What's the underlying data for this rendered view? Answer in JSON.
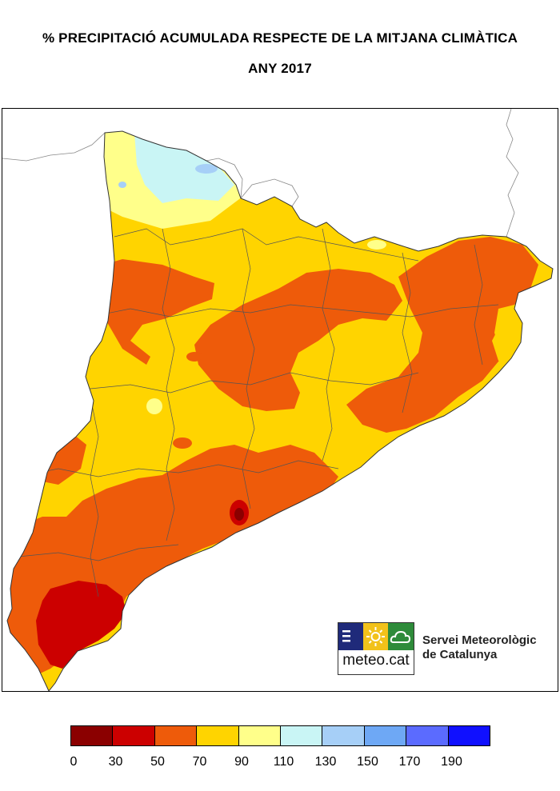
{
  "header": {
    "title": "% PRECIPITACIÓ ACUMULADA RESPECTE DE LA MITJANA CLIMÀTICA",
    "subtitle": "ANY 2017"
  },
  "brand": {
    "logo_text": "meteo.cat",
    "org_line1": "Servei Meteorològic",
    "org_line2": "de Catalunya",
    "logo_colors": [
      "#1f2a7a",
      "#f2c21a",
      "#2e8b3a"
    ],
    "logo_icons": [
      "menu-lines-icon",
      "sun-icon",
      "cloud-icon"
    ]
  },
  "legend": {
    "ticks": [
      "0",
      "30",
      "50",
      "70",
      "90",
      "110",
      "130",
      "150",
      "170",
      "190"
    ],
    "colors": [
      "#8b0000",
      "#cc0000",
      "#ee5b0a",
      "#ffd400",
      "#ffff8a",
      "#c9f5f5",
      "#a6cff7",
      "#6ea8f5",
      "#5b6bff",
      "#1010ff"
    ]
  }
}
